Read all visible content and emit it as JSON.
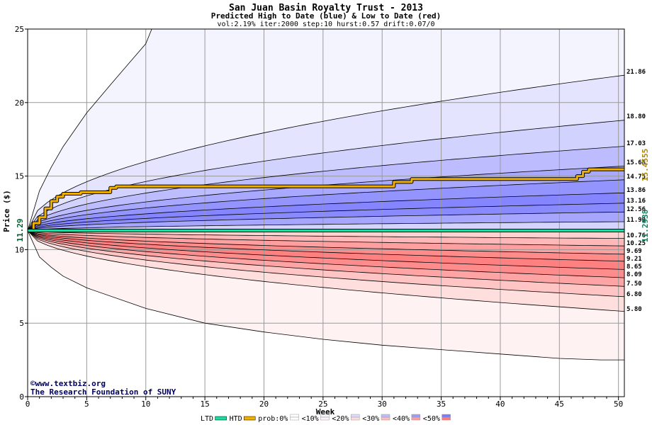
{
  "chart_data": {
    "type": "area",
    "title": "San Juan Basin Royalty Trust - 2013",
    "subtitle": "Predicted High to Date (blue) &  Low to Date (red)",
    "params": "vol:2.19% iter:2000 step:10 hurst:0.57 drift:0.07/0",
    "xlabel": "Week",
    "ylabel": "Price ($)",
    "xlim": [
      0,
      50.5
    ],
    "ylim": [
      0,
      25
    ],
    "x_ticks": [
      0,
      5,
      10,
      15,
      20,
      25,
      30,
      35,
      40,
      45,
      50
    ],
    "y_ticks": [
      0,
      5,
      10,
      15,
      20,
      25
    ],
    "grid": true,
    "start_price": 11.29,
    "start_price_label": "11.29",
    "high_band_end_labels": [
      "21.86",
      "18.80",
      "17.03",
      "15.68",
      "14.75",
      "13.86",
      "13.16",
      "12.56",
      "11.90"
    ],
    "low_band_end_labels": [
      "10.76",
      "10.25",
      "9.69",
      "9.21",
      "8.65",
      "8.09",
      "7.50",
      "6.80",
      "5.80"
    ],
    "high_band_end_values": [
      21.86,
      18.8,
      17.03,
      15.68,
      14.75,
      13.86,
      13.16,
      12.56,
      11.9
    ],
    "low_band_end_values": [
      10.76,
      10.25,
      9.69,
      9.21,
      8.65,
      8.09,
      7.5,
      6.8,
      5.8
    ],
    "outer_high_curve": {
      "x": [
        0,
        1,
        2,
        3,
        5,
        7,
        8.5,
        10,
        10.5
      ],
      "y": [
        11.29,
        14.0,
        15.6,
        17.0,
        19.3,
        21.2,
        22.6,
        24.0,
        25
      ]
    },
    "outer_low_curve": {
      "x": [
        0,
        1,
        2,
        3,
        5,
        10,
        15,
        20,
        25,
        30,
        35,
        40,
        45,
        48.5,
        50.5
      ],
      "y": [
        11.29,
        9.5,
        8.8,
        8.2,
        7.4,
        6.0,
        5.0,
        4.4,
        3.9,
        3.5,
        3.2,
        2.9,
        2.6,
        2.5,
        2.5
      ]
    },
    "series": [
      {
        "name": "HTD",
        "color": "#f0b000",
        "x": [
          0,
          0.5,
          0.5,
          1,
          1,
          1.5,
          1.5,
          2,
          2,
          2.5,
          2.5,
          3,
          3,
          4.5,
          4.5,
          7,
          7,
          7.5,
          7.5,
          31,
          31,
          32.5,
          32.5,
          46.5,
          46.5,
          47,
          47,
          47.5,
          47.5,
          50.5
        ],
        "y": [
          11.29,
          11.29,
          11.8,
          11.8,
          12.2,
          12.2,
          12.8,
          12.8,
          13.3,
          13.3,
          13.6,
          13.6,
          13.8,
          13.8,
          13.9,
          13.9,
          14.2,
          14.2,
          14.3,
          14.3,
          14.6,
          14.6,
          14.8,
          14.8,
          15.0,
          15.0,
          15.3,
          15.3,
          15.4555,
          15.4555
        ]
      },
      {
        "name": "LTD",
        "color": "#20d8a0",
        "x": [
          0,
          50.5
        ],
        "y": [
          11.2938,
          11.2938
        ]
      }
    ],
    "right_axis_labels": [
      {
        "value": "15.4555",
        "color": "#b08800"
      },
      {
        "value": "11.2938",
        "color": "#108060"
      }
    ],
    "legend": {
      "placement": "bottom",
      "items": [
        {
          "label": "LTD",
          "kind": "line",
          "color": "#20d8a0"
        },
        {
          "label": "HTD",
          "kind": "line",
          "color": "#f0b000"
        },
        {
          "label": "prob:0%",
          "kind": "swatch",
          "colors": [
            "#ffffff",
            "#ffffff"
          ]
        },
        {
          "label": "<10%",
          "kind": "swatch",
          "colors": [
            "#f4f4ff",
            "#fff2f2"
          ]
        },
        {
          "label": "<20%",
          "kind": "swatch",
          "colors": [
            "#dcdcff",
            "#ffdcdc"
          ]
        },
        {
          "label": "<30%",
          "kind": "swatch",
          "colors": [
            "#bcbcff",
            "#ffbcbc"
          ]
        },
        {
          "label": "<40%",
          "kind": "swatch",
          "colors": [
            "#9c9cff",
            "#ff9c9c"
          ]
        },
        {
          "label": "<50%",
          "kind": "swatch",
          "colors": [
            "#7b7bff",
            "#ff7b7b"
          ]
        }
      ]
    },
    "credits": [
      "©www.textbiz.org",
      "The Research Foundation of SUNY"
    ]
  }
}
